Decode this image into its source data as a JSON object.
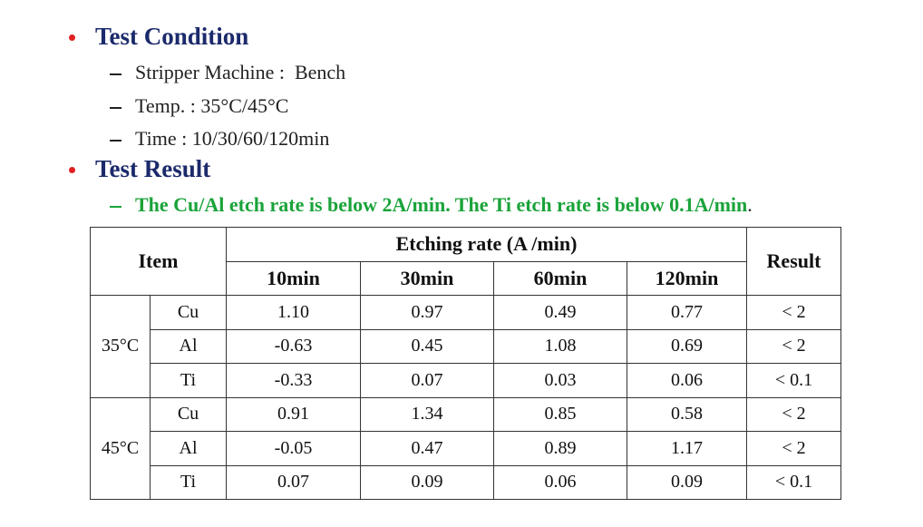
{
  "sections": [
    {
      "title": "Test Condition",
      "items": [
        "Stripper Machine :  Bench",
        "Temp. : 35°C/45°C",
        "Time : 10/30/60/120min"
      ]
    },
    {
      "title": "Test Result",
      "note": "The Cu/Al etch rate is below 2A/min. The Ti etch rate is below 0.1A/min",
      "note_end": "."
    }
  ],
  "table": {
    "header": {
      "item": "Item",
      "group": "Etching rate (A /min)",
      "columns": [
        "10min",
        "30min",
        "60min",
        "120min"
      ],
      "result": "Result"
    },
    "groups": [
      {
        "temp": "35°C",
        "rows": [
          {
            "metal": "Cu",
            "values": [
              "1.10",
              "0.97",
              "0.49",
              "0.77"
            ],
            "result": "< 2"
          },
          {
            "metal": "Al",
            "values": [
              "-0.63",
              "0.45",
              "1.08",
              "0.69"
            ],
            "result": "< 2"
          },
          {
            "metal": "Ti",
            "values": [
              "-0.33",
              "0.07",
              "0.03",
              "0.06"
            ],
            "result": "< 0.1"
          }
        ]
      },
      {
        "temp": "45°C",
        "rows": [
          {
            "metal": "Cu",
            "values": [
              "0.91",
              "1.34",
              "0.85",
              "0.58"
            ],
            "result": "< 2"
          },
          {
            "metal": "Al",
            "values": [
              "-0.05",
              "0.47",
              "0.89",
              "1.17"
            ],
            "result": "< 2"
          },
          {
            "metal": "Ti",
            "values": [
              "0.07",
              "0.09",
              "0.06",
              "0.09"
            ],
            "result": "< 0.1"
          }
        ]
      }
    ]
  }
}
